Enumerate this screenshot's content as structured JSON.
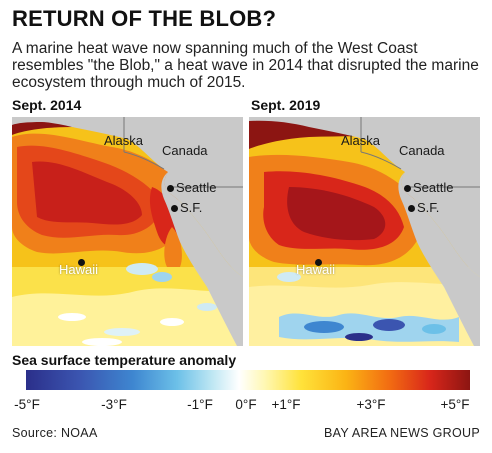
{
  "title": "RETURN OF THE BLOB?",
  "subtitle": "A marine heat wave now spanning much of the West Coast resembles \"the Blob,\" a heat wave in 2014 that disrupted the marine ecosystem through much of 2015.",
  "panels": [
    {
      "label": "Sept. 2014",
      "places": {
        "alaska": "Alaska",
        "canada": "Canada",
        "seattle": "Seattle",
        "sf": "S.F.",
        "hawaii": "Hawaii"
      }
    },
    {
      "label": "Sept. 2019",
      "places": {
        "alaska": "Alaska",
        "canada": "Canada",
        "seattle": "Seattle",
        "sf": "S.F.",
        "hawaii": "Hawaii"
      }
    }
  ],
  "legend": {
    "title": "Sea surface temperature anomaly",
    "ticks": [
      "-5°F",
      "-3°F",
      "-1°F",
      "0°F",
      "+1°F",
      "+3°F",
      "+5°F"
    ],
    "colors": {
      "cold": "#2b2f8a",
      "neutral": "#ffffff",
      "warm": "#f6c21a",
      "hot": "#8c1512",
      "land": "#c9c9c9"
    }
  },
  "footer": {
    "source": "Source: NOAA",
    "credit": "BAY AREA NEWS GROUP"
  }
}
